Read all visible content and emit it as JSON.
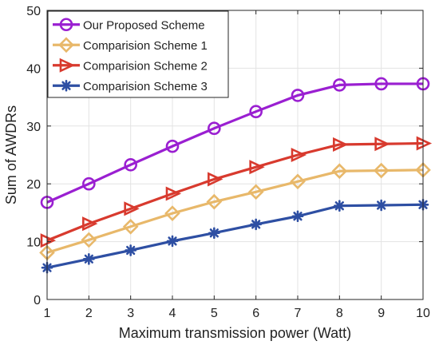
{
  "chart_data": {
    "type": "line",
    "x": [
      1,
      2,
      3,
      4,
      5,
      6,
      7,
      8,
      9,
      10
    ],
    "xlabel": "Maximum transmission power (Watt)",
    "ylabel": "Sum of AWDRs",
    "xlim": [
      1,
      10
    ],
    "ylim": [
      0,
      50
    ],
    "xticks": [
      "1",
      "2",
      "3",
      "4",
      "5",
      "6",
      "7",
      "8",
      "9",
      "10"
    ],
    "yticks": [
      "0",
      "10",
      "20",
      "30",
      "40",
      "50"
    ],
    "grid": true,
    "legend_position": "top-left",
    "series": [
      {
        "name": "Our Proposed Scheme",
        "marker": "circle",
        "color": "#9a1fd1",
        "values": [
          16.8,
          20.0,
          23.3,
          26.5,
          29.6,
          32.5,
          35.3,
          37.1,
          37.3,
          37.3
        ]
      },
      {
        "name": "Comparision Scheme 1",
        "marker": "diamond",
        "color": "#e8b86a",
        "values": [
          8.1,
          10.3,
          12.6,
          14.9,
          16.9,
          18.6,
          20.4,
          22.2,
          22.3,
          22.4
        ]
      },
      {
        "name": "Comparision Scheme 2",
        "marker": "triangle-right",
        "color": "#d83a2e",
        "values": [
          10.2,
          13.1,
          15.7,
          18.3,
          20.8,
          22.9,
          25.0,
          26.8,
          26.9,
          27.0
        ]
      },
      {
        "name": "Comparision Scheme 3",
        "marker": "asterisk",
        "color": "#2e4fa3",
        "values": [
          5.5,
          7.0,
          8.5,
          10.1,
          11.5,
          13.0,
          14.4,
          16.2,
          16.3,
          16.4
        ]
      }
    ]
  }
}
